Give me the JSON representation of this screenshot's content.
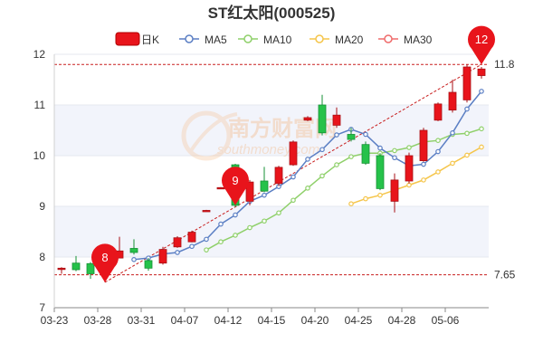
{
  "chart_data": {
    "type": "candlestick",
    "title": "ST红太阳(000525)",
    "legend": {
      "placement": "top-center",
      "items": [
        {
          "label": "日K",
          "color": "#e8141b"
        },
        {
          "label": "MA5",
          "color": "#5b7fc4"
        },
        {
          "label": "MA10",
          "color": "#8fd06a"
        },
        {
          "label": "MA20",
          "color": "#f5c54a"
        },
        {
          "label": "MA30",
          "color": "#ef6b6b"
        }
      ]
    },
    "ylim": [
      7,
      12
    ],
    "yticks": [
      7,
      8,
      9,
      10,
      11,
      12
    ],
    "xtick_labels": [
      "03-23",
      "03-28",
      "03-31",
      "04-07",
      "04-12",
      "04-15",
      "04-20",
      "04-25",
      "04-28",
      "05-06"
    ],
    "xtick_indices": [
      0,
      3,
      6,
      9,
      12,
      15,
      18,
      21,
      24,
      27
    ],
    "grid": true,
    "up_color": "#e8141b",
    "down_color": "#26c24a",
    "candles": [
      {
        "o": 7.78,
        "c": 7.78,
        "h": 7.8,
        "l": 7.67
      },
      {
        "o": 7.88,
        "c": 7.75,
        "h": 8.02,
        "l": 7.72
      },
      {
        "o": 7.87,
        "c": 7.67,
        "h": 7.9,
        "l": 7.57
      },
      {
        "o": 7.65,
        "c": 7.99,
        "h": 8.05,
        "l": 7.5
      },
      {
        "o": 7.98,
        "c": 8.12,
        "h": 8.4,
        "l": 7.98
      },
      {
        "o": 8.17,
        "c": 8.09,
        "h": 8.35,
        "l": 8.05
      },
      {
        "o": 7.93,
        "c": 7.78,
        "h": 7.98,
        "l": 7.73
      },
      {
        "o": 7.88,
        "c": 8.15,
        "h": 8.2,
        "l": 7.85
      },
      {
        "o": 8.2,
        "c": 8.38,
        "h": 8.41,
        "l": 8.18
      },
      {
        "o": 8.3,
        "c": 8.49,
        "h": 8.52,
        "l": 8.29
      },
      {
        "o": 8.91,
        "c": 8.92,
        "h": 8.93,
        "l": 8.9
      },
      {
        "o": 9.36,
        "c": 9.37,
        "h": 9.38,
        "l": 9.35
      },
      {
        "o": 9.82,
        "c": 9.02,
        "h": 9.84,
        "l": 8.99
      },
      {
        "o": 9.1,
        "c": 9.48,
        "h": 9.52,
        "l": 9.02
      },
      {
        "o": 9.5,
        "c": 9.3,
        "h": 9.78,
        "l": 9.28
      },
      {
        "o": 9.45,
        "c": 9.77,
        "h": 9.8,
        "l": 9.4
      },
      {
        "o": 9.82,
        "c": 10.27,
        "h": 10.3,
        "l": 9.8
      },
      {
        "o": 10.7,
        "c": 10.75,
        "h": 10.78,
        "l": 10.68
      },
      {
        "o": 11.0,
        "c": 10.45,
        "h": 11.2,
        "l": 10.4
      },
      {
        "o": 10.6,
        "c": 10.8,
        "h": 10.95,
        "l": 10.55
      },
      {
        "o": 10.42,
        "c": 10.32,
        "h": 10.55,
        "l": 10.28
      },
      {
        "o": 10.22,
        "c": 9.85,
        "h": 10.28,
        "l": 9.82
      },
      {
        "o": 10.0,
        "c": 9.35,
        "h": 10.05,
        "l": 9.32
      },
      {
        "o": 9.1,
        "c": 9.52,
        "h": 9.65,
        "l": 8.88
      },
      {
        "o": 9.5,
        "c": 10.0,
        "h": 10.06,
        "l": 9.45
      },
      {
        "o": 9.9,
        "c": 10.5,
        "h": 10.55,
        "l": 9.88
      },
      {
        "o": 10.7,
        "c": 11.02,
        "h": 11.05,
        "l": 10.68
      },
      {
        "o": 10.9,
        "c": 11.25,
        "h": 11.5,
        "l": 10.85
      },
      {
        "o": 11.1,
        "c": 11.75,
        "h": 11.8,
        "l": 11.05
      },
      {
        "o": 11.58,
        "c": 11.71,
        "h": 11.75,
        "l": 11.52
      }
    ],
    "ma5": [
      null,
      null,
      null,
      null,
      null,
      7.95,
      7.98,
      8.06,
      8.09,
      8.21,
      8.35,
      8.65,
      8.83,
      9.1,
      9.22,
      9.39,
      9.58,
      9.93,
      10.12,
      10.41,
      10.52,
      10.42,
      10.15,
      9.96,
      9.8,
      9.83,
      10.08,
      10.45,
      10.92,
      11.27
    ],
    "ma10": [
      null,
      null,
      null,
      null,
      null,
      null,
      null,
      null,
      null,
      null,
      8.14,
      8.3,
      8.43,
      8.58,
      8.71,
      8.87,
      9.12,
      9.36,
      9.6,
      9.82,
      9.98,
      10.05,
      10.05,
      10.1,
      10.16,
      10.27,
      10.3,
      10.42,
      10.44,
      10.53
    ],
    "ma20": [
      null,
      null,
      null,
      null,
      null,
      null,
      null,
      null,
      null,
      null,
      null,
      null,
      null,
      null,
      null,
      null,
      null,
      null,
      null,
      null,
      9.05,
      9.15,
      9.22,
      9.32,
      9.42,
      9.52,
      9.68,
      9.85,
      10.01,
      10.17
    ],
    "reference_lines": [
      {
        "label": "11.8",
        "value": 11.8,
        "side": "right"
      },
      {
        "label": "7.65",
        "value": 7.65,
        "side": "right"
      }
    ],
    "trend_line": {
      "from": {
        "index": 3,
        "value": 7.5
      },
      "to": {
        "index": 29,
        "value": 11.8
      }
    },
    "markers": [
      {
        "label": "8",
        "index": 3,
        "value": 7.5
      },
      {
        "label": "9",
        "index": 12,
        "value": 9.02
      },
      {
        "label": "12",
        "index": 29,
        "value": 11.8
      }
    ],
    "watermark_text": "南方财富网",
    "watermark_subtext": "southmoney.com"
  }
}
